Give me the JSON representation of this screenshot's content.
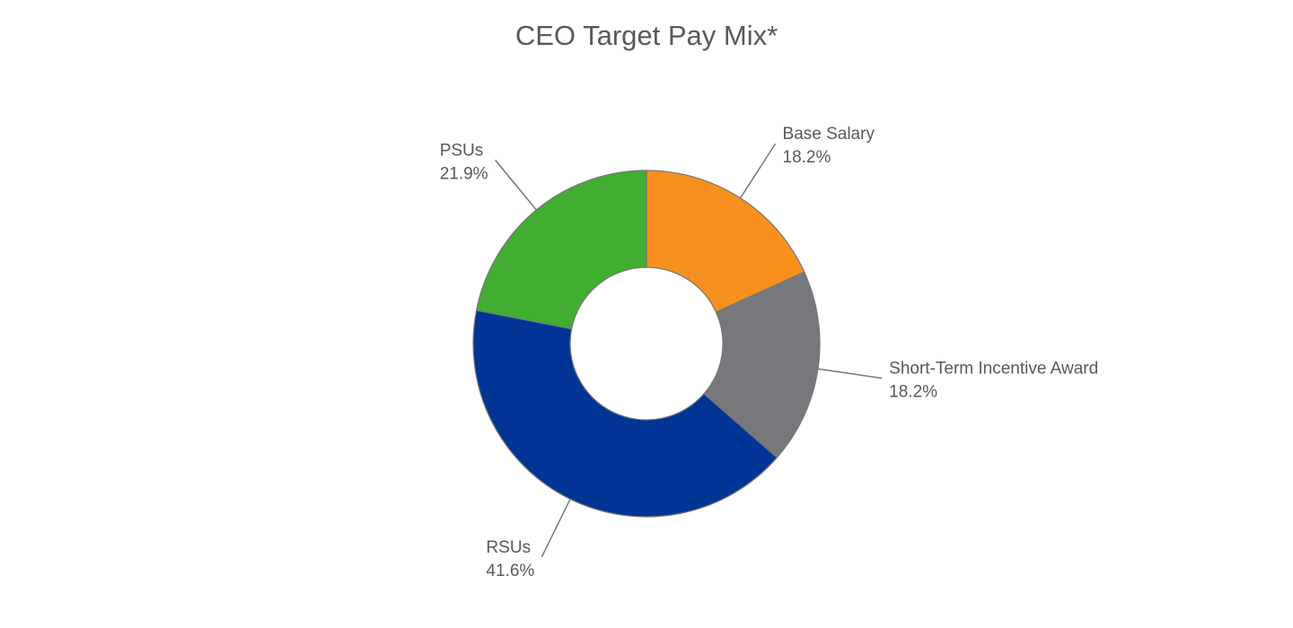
{
  "chart_data": {
    "type": "donut",
    "title": "CEO Target Pay Mix*",
    "categories": [
      "Base Salary",
      "Short-Term Incentive Award",
      "RSUs",
      "PSUs"
    ],
    "values": [
      18.2,
      18.2,
      41.6,
      21.9
    ],
    "value_labels": [
      "18.2%",
      "18.2%",
      "41.6%",
      "21.9%"
    ],
    "colors": [
      "#f7901e",
      "#76787b",
      "#003595",
      "#41ad31"
    ]
  }
}
